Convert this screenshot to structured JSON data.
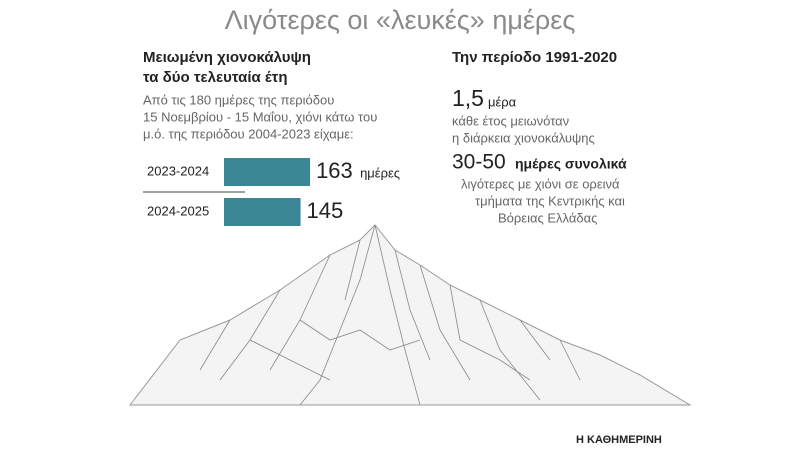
{
  "chart_data": {
    "type": "bar",
    "title": "Λιγότερες οι «λευκές» ημέρες",
    "subtitle": [
      "Μειωμένη χιονοκάλυψη",
      "τα δύο τελευταία έτη"
    ],
    "description": [
      "Από τις 180 ημέρες της περιόδου",
      "15 Νοεμβρίου - 15 Μαΐου, χιόνι κάτω του",
      "μ.ό. της περιόδου 2004-2023 είχαμε:"
    ],
    "categories": [
      "2023-2024",
      "2024-2025"
    ],
    "values": [
      163,
      145
    ],
    "value_unit": "ημέρες",
    "color": "#3b8796",
    "side_title": "Την περίοδο 1991-2020",
    "fact1": {
      "big": "1,5",
      "unit": "μέρα",
      "lines": [
        "κάθε έτος μειωνόταν",
        "η διάρκεια χιονοκάλυψης"
      ]
    },
    "fact2": {
      "big": "30-50",
      "unit": "ημέρες συνολικά",
      "lines": [
        "λιγότερες με χιόνι σε ορεινά",
        "τμήματα της Κεντρικής και",
        "Βόρειας Ελλάδας"
      ]
    },
    "credit": "Η ΚΑΘΗΜΕΡΙΝΗ"
  }
}
